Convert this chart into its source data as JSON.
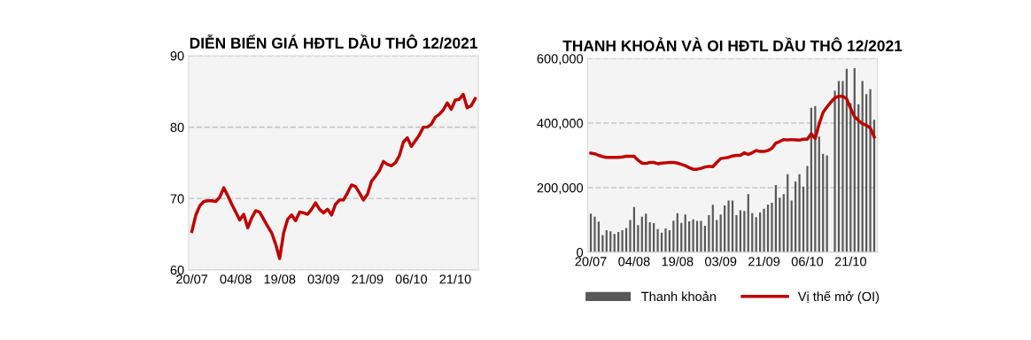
{
  "chart_data": [
    {
      "type": "line",
      "title": "DIỄN BIẾN GIÁ HĐTL DẦU THÔ 12/2021",
      "categories": [
        "20/07",
        null,
        null,
        null,
        null,
        null,
        null,
        null,
        null,
        null,
        null,
        "04/08",
        null,
        null,
        null,
        null,
        null,
        null,
        null,
        null,
        null,
        null,
        "19/08",
        null,
        null,
        null,
        null,
        null,
        null,
        null,
        null,
        null,
        null,
        "03/09",
        null,
        null,
        null,
        null,
        null,
        null,
        null,
        null,
        null,
        null,
        "21/09",
        null,
        null,
        null,
        null,
        null,
        null,
        null,
        null,
        null,
        null,
        "06/10",
        null,
        null,
        null,
        null,
        null,
        null,
        null,
        null,
        null,
        null,
        "21/10",
        null,
        null,
        null,
        null,
        null
      ],
      "series": [
        {
          "color": "#c00000",
          "values": [
            65.4,
            67.7,
            69.0,
            69.6,
            69.7,
            69.7,
            69.6,
            70.2,
            71.5,
            70.4,
            69.2,
            68.1,
            67.0,
            67.8,
            65.9,
            67.3,
            68.3,
            68.1,
            67.1,
            66.1,
            65.2,
            63.6,
            61.6,
            65.2,
            67.1,
            67.7,
            66.9,
            68.1,
            68.0,
            67.8,
            68.5,
            69.4,
            68.5,
            68.0,
            68.5,
            67.7,
            69.2,
            69.8,
            69.8,
            70.8,
            71.9,
            71.7,
            70.8,
            69.8,
            70.6,
            72.4,
            73.1,
            73.9,
            75.2,
            74.8,
            74.6,
            75.0,
            76.0,
            77.9,
            78.5,
            77.3,
            78.1,
            78.9,
            80.0,
            80.0,
            80.4,
            81.4,
            81.8,
            82.4,
            83.4,
            82.5,
            83.8,
            83.9,
            84.6,
            82.7,
            83.0,
            84.0
          ]
        }
      ],
      "ylim": [
        60,
        90
      ],
      "yticks": [
        60,
        70,
        80,
        90
      ],
      "grid": "y",
      "legend": false
    },
    {
      "type": "bar",
      "title": "THANH KHOẢN VÀ OI HĐTL DẦU THÔ 12/2021",
      "categories": [
        "20/07",
        null,
        null,
        null,
        null,
        null,
        null,
        null,
        null,
        null,
        null,
        "04/08",
        null,
        null,
        null,
        null,
        null,
        null,
        null,
        null,
        null,
        null,
        "19/08",
        null,
        null,
        null,
        null,
        null,
        null,
        null,
        null,
        null,
        null,
        "03/09",
        null,
        null,
        null,
        null,
        null,
        null,
        null,
        null,
        null,
        null,
        "21/09",
        null,
        null,
        null,
        null,
        null,
        null,
        null,
        null,
        null,
        null,
        "06/10",
        null,
        null,
        null,
        null,
        null,
        null,
        null,
        null,
        null,
        null,
        "21/10",
        null,
        null,
        null,
        null,
        null,
        null
      ],
      "series": [
        {
          "name": "Thanh khoản",
          "type": "bar",
          "color": "#595959",
          "values": [
            120000,
            110000,
            95000,
            53000,
            68000,
            65000,
            57000,
            63000,
            68000,
            75000,
            100000,
            140000,
            84000,
            110000,
            120000,
            93000,
            90000,
            72000,
            61000,
            74000,
            68000,
            98000,
            121000,
            91000,
            117000,
            96000,
            102000,
            97000,
            97000,
            82000,
            115000,
            147000,
            100000,
            117000,
            145000,
            160000,
            160000,
            115000,
            130000,
            128000,
            180000,
            121000,
            109000,
            123000,
            135000,
            148000,
            153000,
            208000,
            169000,
            180000,
            242000,
            160000,
            219000,
            242000,
            203000,
            267000,
            447000,
            453000,
            358000,
            305000,
            300000,
            null,
            500000,
            530000,
            530000,
            568000,
            462000,
            570000,
            458000,
            530000,
            490000,
            505000,
            410000
          ]
        },
        {
          "name": "Vị thế mở (OI)",
          "type": "line",
          "color": "#c00000",
          "values": [
            307000,
            305000,
            300000,
            296000,
            294000,
            294000,
            294000,
            294000,
            295000,
            297000,
            297000,
            297000,
            285000,
            276000,
            275000,
            278000,
            278000,
            274000,
            276000,
            277000,
            278000,
            278000,
            276000,
            272000,
            268000,
            262000,
            257000,
            257000,
            260000,
            264000,
            266000,
            265000,
            278000,
            290000,
            292000,
            294000,
            298000,
            300000,
            300000,
            308000,
            303000,
            308000,
            315000,
            312000,
            312000,
            315000,
            322000,
            338000,
            343000,
            349000,
            348000,
            349000,
            348000,
            347000,
            350000,
            350000,
            367000,
            352000,
            397000,
            433000,
            450000,
            465000,
            478000,
            483000,
            483000,
            475000,
            445000,
            420000,
            408000,
            398000,
            393000,
            385000,
            357000
          ]
        }
      ],
      "ylim": [
        0,
        600000
      ],
      "yticks": [
        0,
        {
          "value": 200000,
          "label": "200,000"
        },
        {
          "value": 400000,
          "label": "400,000"
        },
        {
          "value": 600000,
          "label": "600,000"
        }
      ],
      "grid": "y",
      "legend": "bottom"
    }
  ]
}
